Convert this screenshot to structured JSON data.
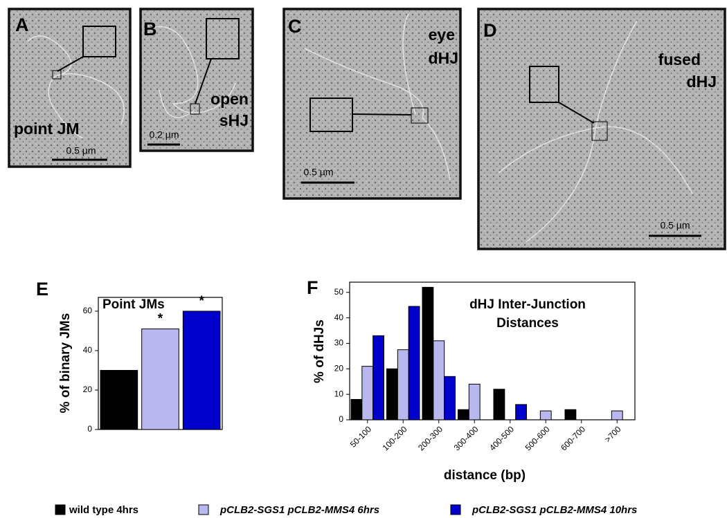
{
  "micrographs": [
    {
      "label": "A",
      "annotation": [
        "point JM"
      ],
      "scale": "0.5 µm"
    },
    {
      "label": "B",
      "annotation": [
        "open",
        "sHJ"
      ],
      "scale": "0.2 µm"
    },
    {
      "label": "C",
      "annotation": [
        "eye",
        "dHJ"
      ],
      "scale": "0.5 µm"
    },
    {
      "label": "D",
      "annotation": [
        "fused",
        "dHJ"
      ],
      "scale": "0.5 µm"
    }
  ],
  "chart_data": [
    {
      "type": "bar",
      "panel": "E",
      "title": "Point JMs",
      "y_label": "% of binary JMs",
      "categories": [
        null,
        null,
        null
      ],
      "values": [
        30,
        51,
        60
      ],
      "colors": [
        "#000000",
        "#b8b8ee",
        "#0000cc"
      ],
      "annotations": [
        null,
        "*",
        "*"
      ],
      "ylim": [
        0,
        67
      ],
      "yticks": [
        0,
        20,
        40,
        60
      ]
    },
    {
      "type": "grouped-bar",
      "panel": "F",
      "title": [
        "dHJ Inter-Junction",
        "Distances"
      ],
      "y_label": "% of dHJs",
      "x_label": "distance (bp)",
      "categories": [
        "50-100",
        "100-200",
        "200-300",
        "300-400",
        "400-500",
        "500-600",
        "600-700",
        ">700"
      ],
      "series": [
        {
          "name": "wild type 4hrs",
          "color": "#000000",
          "values": [
            8,
            20,
            52,
            4,
            12,
            0,
            4,
            0
          ]
        },
        {
          "name": "pCLB2-SGS1 pCLB2-MMS4 6hrs",
          "color": "#b8b8ee",
          "values": [
            21,
            27.5,
            31,
            14,
            0,
            3.5,
            0,
            3.5
          ]
        },
        {
          "name": "pCLB2-SGS1 pCLB2-MMS4 10hrs",
          "color": "#0000cc",
          "values": [
            33,
            44.5,
            17,
            0,
            6,
            0,
            0,
            0
          ]
        }
      ],
      "ylim": [
        0,
        54
      ],
      "yticks": [
        0,
        10,
        20,
        30,
        40,
        50
      ]
    }
  ]
}
